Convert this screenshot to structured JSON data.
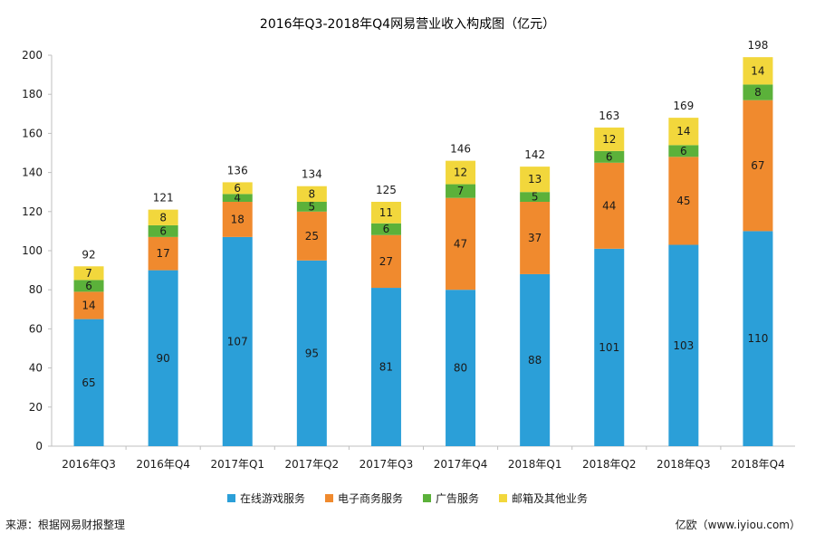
{
  "chart_data": {
    "type": "bar",
    "stacked": true,
    "title": "2016年Q3-2018年Q4网易营业收入构成图（亿元）",
    "categories": [
      "2016年Q3",
      "2016年Q4",
      "2017年Q1",
      "2017年Q2",
      "2017年Q3",
      "2017年Q4",
      "2018年Q1",
      "2018年Q2",
      "2018年Q3",
      "2018年Q4"
    ],
    "series": [
      {
        "name": "在线游戏服务",
        "color": "#2b9fd8",
        "values": [
          65,
          90,
          107,
          95,
          81,
          80,
          88,
          101,
          103,
          110
        ]
      },
      {
        "name": "电子商务服务",
        "color": "#f08a2e",
        "values": [
          14,
          17,
          18,
          25,
          27,
          47,
          37,
          44,
          45,
          67
        ]
      },
      {
        "name": "广告服务",
        "color": "#5bb13a",
        "values": [
          6,
          6,
          4,
          5,
          6,
          7,
          5,
          6,
          6,
          8
        ]
      },
      {
        "name": "邮箱及其他业务",
        "color": "#f2d73c",
        "values": [
          7,
          8,
          6,
          8,
          11,
          12,
          13,
          12,
          14,
          14
        ]
      }
    ],
    "totals": [
      92,
      121,
      136,
      134,
      125,
      146,
      142,
      163,
      169,
      198
    ],
    "ylim": [
      0,
      200
    ],
    "yticks": [
      0,
      20,
      40,
      60,
      80,
      100,
      120,
      140,
      160,
      180,
      200
    ],
    "grid": false,
    "legend_position": "bottom"
  },
  "footer": {
    "source": "来源：根据网易财报整理",
    "credit": "亿欧（www.iyiou.com）"
  }
}
